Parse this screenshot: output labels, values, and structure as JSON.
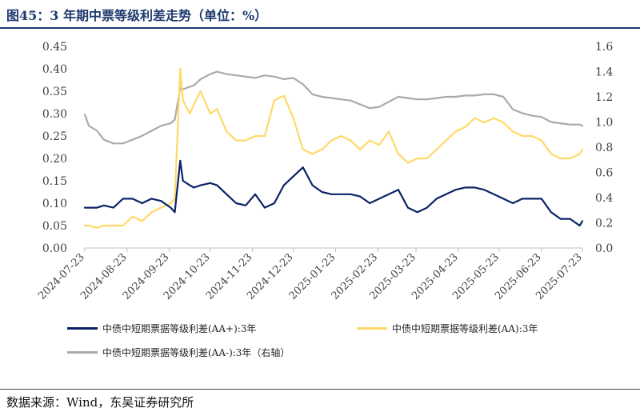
{
  "header": {
    "title": "图45：3 年期中票等级利差走势（单位：%）"
  },
  "footer": {
    "source": "数据来源：Wind，东吴证券研究所"
  },
  "chart_data": {
    "type": "line",
    "title": "",
    "xlabel": "",
    "ylabel_left": "",
    "ylabel_right": "",
    "x_dates": [
      "2024-07-23",
      "2024-07-26",
      "2024-08-01",
      "2024-08-06",
      "2024-08-13",
      "2024-08-20",
      "2024-08-27",
      "2024-09-03",
      "2024-09-10",
      "2024-09-17",
      "2024-09-24",
      "2024-09-27",
      "2024-10-01",
      "2024-10-03",
      "2024-10-08",
      "2024-10-11",
      "2024-10-16",
      "2024-10-23",
      "2024-10-28",
      "2024-11-04",
      "2024-11-11",
      "2024-11-18",
      "2024-11-25",
      "2024-12-02",
      "2024-12-09",
      "2024-12-16",
      "2024-12-23",
      "2024-12-30",
      "2025-01-06",
      "2025-01-13",
      "2025-01-20",
      "2025-01-27",
      "2025-02-03",
      "2025-02-10",
      "2025-02-17",
      "2025-02-24",
      "2025-03-03",
      "2025-03-10",
      "2025-03-17",
      "2025-03-24",
      "2025-03-31",
      "2025-04-07",
      "2025-04-14",
      "2025-04-21",
      "2025-04-28",
      "2025-05-05",
      "2025-05-12",
      "2025-05-19",
      "2025-05-26",
      "2025-06-02",
      "2025-06-09",
      "2025-06-16",
      "2025-06-23",
      "2025-06-30",
      "2025-07-07",
      "2025-07-14",
      "2025-07-21",
      "2025-07-23"
    ],
    "x_tick_labels": [
      "2024-07-23",
      "2024-08-23",
      "2024-09-23",
      "2024-10-23",
      "2024-11-23",
      "2024-12-23",
      "2025-01-23",
      "2025-02-23",
      "2025-03-23",
      "2025-04-23",
      "2025-05-23",
      "2025-06-23",
      "2025-07-23"
    ],
    "y_left": {
      "min": 0.0,
      "max": 0.45,
      "step": 0.05,
      "tick_labels": [
        "0.00",
        "0.05",
        "0.10",
        "0.15",
        "0.20",
        "0.25",
        "0.30",
        "0.35",
        "0.40",
        "0.45"
      ]
    },
    "y_right": {
      "min": 0.0,
      "max": 1.6,
      "step": 0.2,
      "tick_labels": [
        "0.0",
        "0.2",
        "0.4",
        "0.6",
        "0.8",
        "1.0",
        "1.2",
        "1.4",
        "1.6"
      ]
    },
    "series": [
      {
        "name": "中债中短期票据等级利差(AA+):3年",
        "axis": "left",
        "color": "#0b2265",
        "values": [
          0.09,
          0.09,
          0.09,
          0.095,
          0.09,
          0.11,
          0.11,
          0.1,
          0.11,
          0.105,
          0.09,
          0.08,
          0.195,
          0.15,
          0.14,
          0.135,
          0.14,
          0.145,
          0.14,
          0.12,
          0.1,
          0.095,
          0.12,
          0.09,
          0.1,
          0.14,
          0.16,
          0.18,
          0.14,
          0.125,
          0.12,
          0.12,
          0.12,
          0.115,
          0.1,
          0.11,
          0.12,
          0.13,
          0.09,
          0.08,
          0.09,
          0.11,
          0.12,
          0.13,
          0.135,
          0.135,
          0.13,
          0.12,
          0.11,
          0.1,
          0.11,
          0.11,
          0.11,
          0.08,
          0.065,
          0.065,
          0.05,
          0.06
        ]
      },
      {
        "name": "中债中短期票据等级利差(AA):3年",
        "axis": "left",
        "color": "#ffd966",
        "values": [
          0.05,
          0.05,
          0.045,
          0.05,
          0.05,
          0.05,
          0.07,
          0.06,
          0.08,
          0.09,
          0.1,
          0.11,
          0.4,
          0.33,
          0.3,
          0.32,
          0.35,
          0.3,
          0.31,
          0.26,
          0.24,
          0.24,
          0.25,
          0.25,
          0.33,
          0.34,
          0.29,
          0.22,
          0.21,
          0.22,
          0.24,
          0.25,
          0.24,
          0.22,
          0.24,
          0.23,
          0.26,
          0.21,
          0.19,
          0.2,
          0.2,
          0.22,
          0.24,
          0.26,
          0.27,
          0.29,
          0.28,
          0.29,
          0.28,
          0.26,
          0.25,
          0.25,
          0.24,
          0.21,
          0.2,
          0.2,
          0.21,
          0.22
        ]
      },
      {
        "name": "中债中短期票据等级利差(AA-):3年（右轴）",
        "axis": "right",
        "color": "#aaaaaa",
        "values": [
          1.06,
          0.97,
          0.93,
          0.86,
          0.83,
          0.83,
          0.86,
          0.89,
          0.93,
          0.97,
          0.99,
          1.02,
          1.27,
          1.26,
          1.28,
          1.29,
          1.34,
          1.38,
          1.4,
          1.38,
          1.37,
          1.36,
          1.35,
          1.37,
          1.36,
          1.34,
          1.35,
          1.3,
          1.22,
          1.2,
          1.19,
          1.18,
          1.17,
          1.14,
          1.11,
          1.12,
          1.16,
          1.2,
          1.19,
          1.18,
          1.18,
          1.19,
          1.2,
          1.2,
          1.21,
          1.21,
          1.22,
          1.22,
          1.2,
          1.1,
          1.07,
          1.05,
          1.04,
          1.0,
          0.99,
          0.98,
          0.98,
          0.97
        ]
      }
    ]
  }
}
